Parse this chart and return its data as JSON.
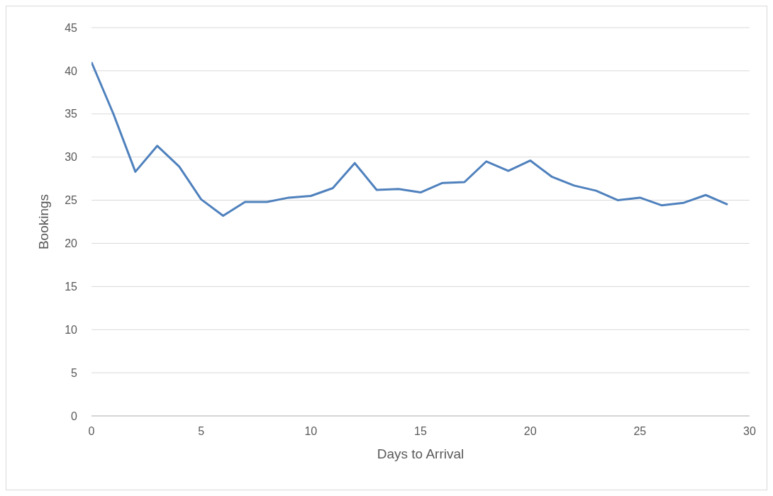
{
  "chart_data": {
    "type": "line",
    "xlabel": "Days to Arrival",
    "ylabel": "Bookings",
    "x": [
      0,
      1,
      2,
      3,
      4,
      5,
      6,
      7,
      8,
      9,
      10,
      11,
      12,
      13,
      14,
      15,
      16,
      17,
      18,
      19,
      20,
      21,
      22,
      23,
      24,
      25,
      26,
      27,
      28,
      29
    ],
    "series": [
      {
        "color": "#4f81bd",
        "values": [
          41.0,
          35.0,
          28.3,
          31.3,
          28.9,
          25.1,
          23.2,
          24.8,
          24.8,
          25.3,
          25.5,
          26.4,
          29.3,
          26.2,
          26.3,
          25.9,
          27.0,
          27.1,
          29.5,
          28.4,
          29.6,
          27.7,
          26.7,
          26.1,
          25.0,
          25.3,
          24.4,
          24.7,
          25.6,
          24.5
        ]
      }
    ],
    "xlim": [
      0,
      30
    ],
    "xticks": [
      0,
      5,
      10,
      15,
      20,
      25,
      30
    ],
    "ylim": [
      0,
      45
    ],
    "yticks": [
      0,
      5,
      10,
      15,
      20,
      25,
      30,
      35,
      40,
      45
    ],
    "grid": "y",
    "legend": false,
    "marker": "none",
    "line_style": "solid"
  }
}
